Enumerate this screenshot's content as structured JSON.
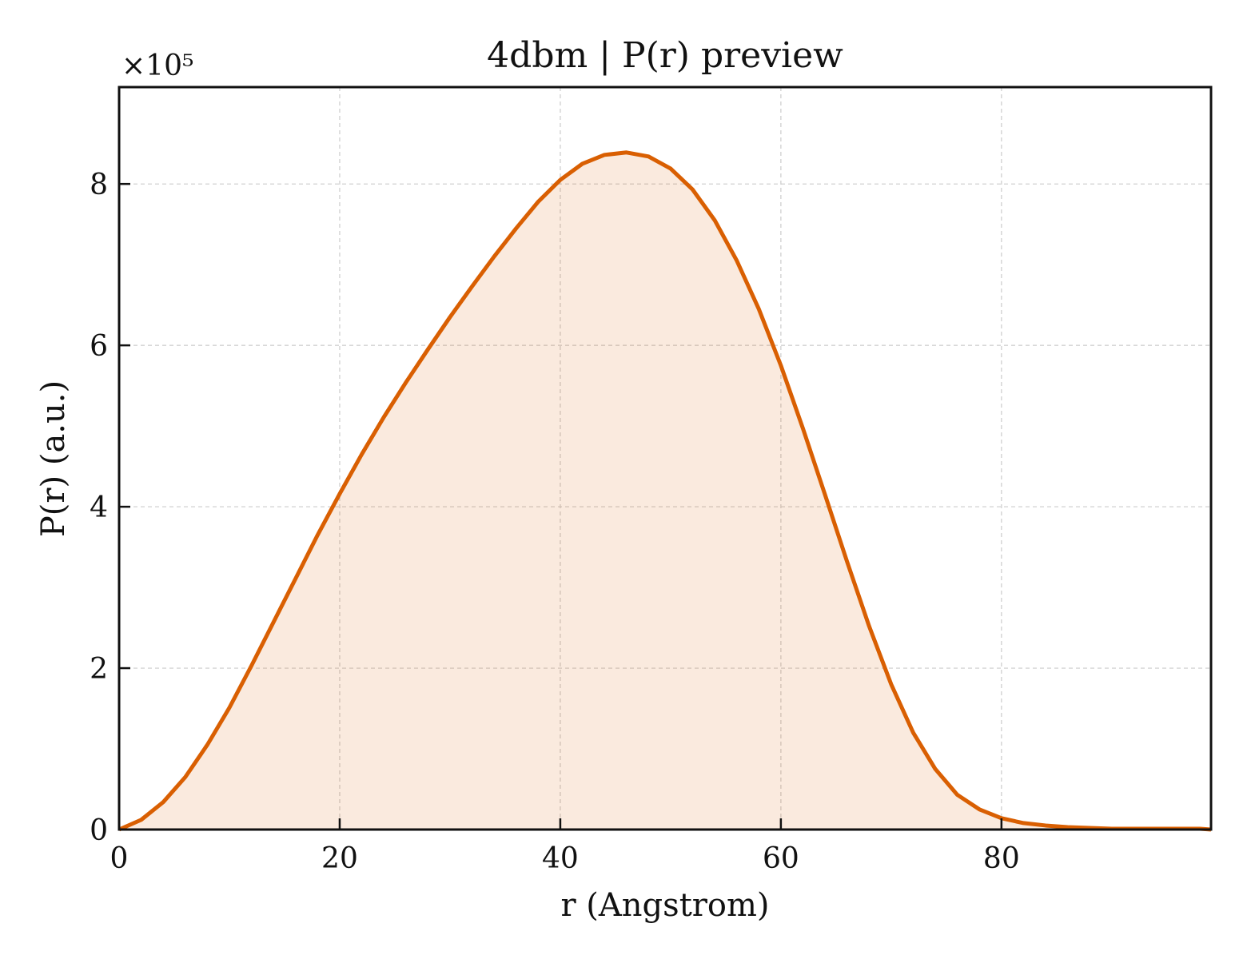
{
  "chart_data": {
    "type": "area",
    "title": "4dbm | P(r) preview",
    "xlabel": "r (Angstrom)",
    "ylabel": "P(r) (a.u.)",
    "y_multiplier_label": "×10⁵",
    "y_scale_factor": 100000,
    "xlim": [
      0,
      99
    ],
    "ylim": [
      0,
      9.2
    ],
    "x_ticks": [
      0,
      20,
      40,
      60,
      80
    ],
    "y_ticks": [
      0,
      2,
      4,
      6,
      8
    ],
    "x_tick_labels": [
      "0",
      "20",
      "40",
      "60",
      "80"
    ],
    "y_tick_labels": [
      "0",
      "2",
      "4",
      "6",
      "8"
    ],
    "grid": true,
    "legend": "none",
    "line_color": "#d95f02",
    "fill_color": "#d95f02",
    "series": [
      {
        "x": [
          0,
          2,
          4,
          6,
          8,
          10,
          12,
          14,
          16,
          18,
          20,
          22,
          24,
          26,
          28,
          30,
          32,
          34,
          36,
          38,
          40,
          42,
          44,
          46,
          48,
          50,
          52,
          54,
          56,
          58,
          60,
          62,
          64,
          66,
          68,
          70,
          72,
          74,
          76,
          78,
          80,
          82,
          84,
          86,
          88,
          90,
          92,
          94,
          96,
          98,
          99
        ],
        "y": [
          0.0,
          0.12,
          0.34,
          0.65,
          1.05,
          1.51,
          2.03,
          2.57,
          3.11,
          3.65,
          4.16,
          4.65,
          5.11,
          5.54,
          5.95,
          6.35,
          6.73,
          7.1,
          7.45,
          7.78,
          8.05,
          8.25,
          8.36,
          8.39,
          8.34,
          8.19,
          7.93,
          7.55,
          7.05,
          6.45,
          5.75,
          4.97,
          4.15,
          3.32,
          2.52,
          1.8,
          1.2,
          0.75,
          0.43,
          0.25,
          0.14,
          0.08,
          0.05,
          0.03,
          0.02,
          0.01,
          0.01,
          0.01,
          0.01,
          0.01,
          0.0
        ]
      }
    ]
  }
}
